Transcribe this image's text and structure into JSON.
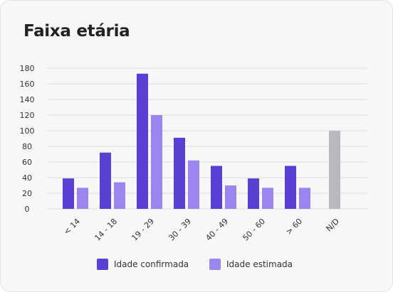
{
  "card": {
    "title": "Faixa etária"
  },
  "colors": {
    "confirmed": "#5a3fd6",
    "estimated": "#9b86f0",
    "unknown": "#b9b8bd",
    "grid": "#dcdcdc",
    "text": "#333333"
  },
  "chart_data": {
    "type": "bar",
    "title": "Faixa etária",
    "xlabel": "",
    "ylabel": "",
    "ylim": [
      0,
      180
    ],
    "yticks": [
      0,
      20,
      40,
      60,
      80,
      100,
      120,
      140,
      160,
      180
    ],
    "grid": true,
    "legend_position": "bottom",
    "categories": [
      "< 14",
      "14 - 18",
      "19 - 29",
      "30 - 39",
      "40 - 49",
      "50 - 60",
      "> 60",
      "N/D"
    ],
    "series": [
      {
        "name": "Idade confirmada",
        "values": [
          39,
          72,
          173,
          91,
          55,
          39,
          55,
          null
        ]
      },
      {
        "name": "Idade estimada",
        "values": [
          27,
          34,
          120,
          62,
          30,
          27,
          27,
          null
        ]
      },
      {
        "values": [
          null,
          null,
          null,
          null,
          null,
          null,
          null,
          100
        ]
      }
    ]
  }
}
